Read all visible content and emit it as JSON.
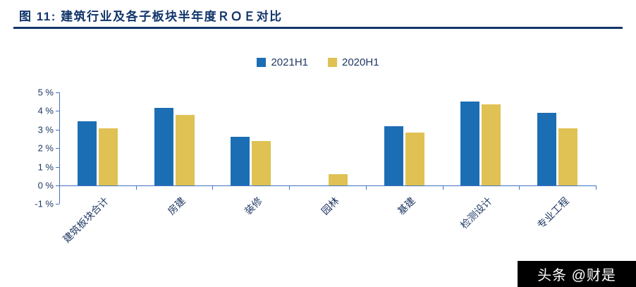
{
  "header": {
    "title": "图 11: 建筑行业及各子板块半年度ＲＯＥ对比"
  },
  "chart_data": {
    "type": "bar",
    "title": "建筑行业及各子板块半年度ROE对比",
    "categories": [
      "建筑板块合计",
      "房建",
      "装修",
      "园林",
      "基建",
      "检测设计",
      "专业工程"
    ],
    "series": [
      {
        "name": "2021H1",
        "color": "#1C6EB4",
        "values": [
          3.45,
          4.15,
          2.6,
          0,
          3.2,
          4.5,
          3.9
        ]
      },
      {
        "name": "2020H1",
        "color": "#DFC253",
        "values": [
          3.05,
          3.8,
          2.4,
          0.6,
          2.85,
          4.35,
          3.05
        ]
      }
    ],
    "ytick_labels": [
      "5 %",
      "4 %",
      "3 %",
      "2 %",
      "1 %",
      "0 %",
      "-1 %"
    ],
    "ylim": [
      -1,
      5
    ],
    "unit": "%",
    "grid": false,
    "legend_position": "top"
  },
  "colors": {
    "title_navy": "#12366B",
    "axis_blue": "#4472C4",
    "label_navy": "#1F3864"
  },
  "watermark": {
    "text": "头条 @财是"
  }
}
